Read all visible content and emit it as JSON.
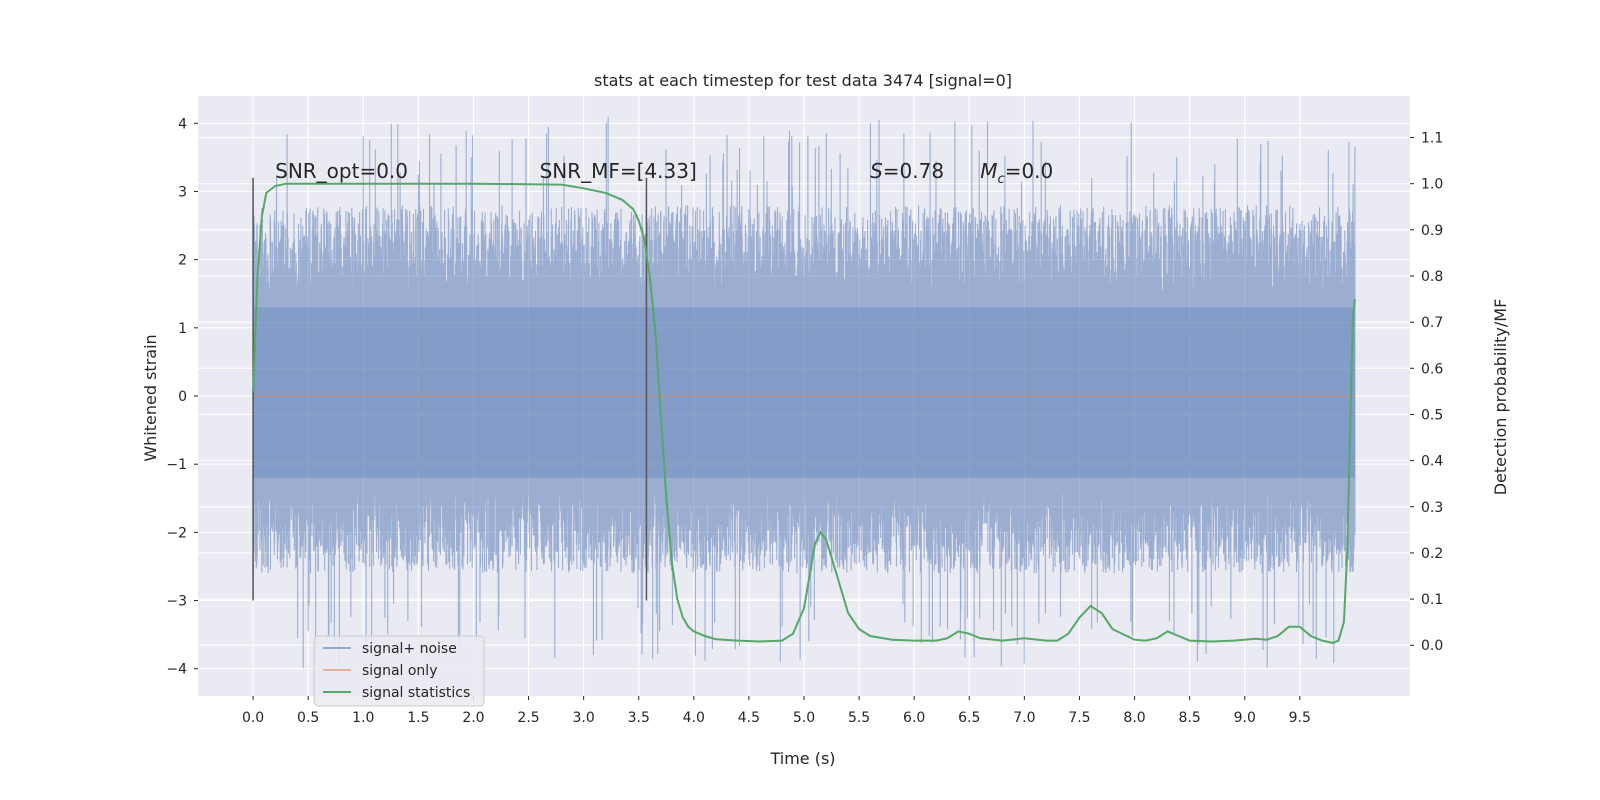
{
  "chart_data": {
    "type": "line",
    "title": "stats at each timestep for test data 3474 [signal=0]",
    "xlabel": "Time (s)",
    "ylabel": "Whitened strain",
    "y2label": "Detection probability/MF",
    "xlim": [
      -0.5,
      10.5
    ],
    "ylim": [
      -4.4,
      4.4
    ],
    "y2lim": [
      -0.11,
      1.19
    ],
    "xticks": [
      0.0,
      0.5,
      1.0,
      1.5,
      2.0,
      2.5,
      3.0,
      3.5,
      4.0,
      4.5,
      5.0,
      5.5,
      6.0,
      6.5,
      7.0,
      7.5,
      8.0,
      8.5,
      9.0,
      9.5
    ],
    "xtick_labels": [
      "0.0",
      "0.5",
      "1.0",
      "1.5",
      "2.0",
      "2.5",
      "3.0",
      "3.5",
      "4.0",
      "4.5",
      "5.0",
      "5.5",
      "6.0",
      "6.5",
      "7.0",
      "7.5",
      "8.0",
      "8.5",
      "9.0",
      "9.5"
    ],
    "yticks": [
      -4,
      -3,
      -2,
      -1,
      0,
      1,
      2,
      3,
      4
    ],
    "ytick_labels": [
      "−4",
      "−3",
      "−2",
      "−1",
      "0",
      "1",
      "2",
      "3",
      "4"
    ],
    "y2ticks": [
      0.0,
      0.1,
      0.2,
      0.3,
      0.4,
      0.5,
      0.6,
      0.7,
      0.8,
      0.9,
      1.0,
      1.1
    ],
    "y2tick_labels": [
      "0.0",
      "0.1",
      "0.2",
      "0.3",
      "0.4",
      "0.5",
      "0.6",
      "0.7",
      "0.8",
      "0.9",
      "1.0",
      "1.1"
    ],
    "grid": true,
    "legend_position": "lower-left",
    "colors": {
      "background": "#eaeaf2",
      "grid": "#ffffff",
      "noise": "#4c72b0",
      "signal": "#dd8452",
      "stats": "#55a868",
      "marker": "#555555"
    },
    "annotations": [
      {
        "text": "SNR_opt=0.0",
        "x": 0.2,
        "y": 3.2
      },
      {
        "text": "SNR_MF=[4.33]",
        "x": 2.6,
        "y": 3.2
      },
      {
        "text": "S=0.78",
        "x": 5.6,
        "y": 3.2
      },
      {
        "text": "M_c=0.0",
        "x": 6.6,
        "y": 3.2
      }
    ],
    "vertical_markers": [
      {
        "x": 0.0,
        "ymin": -3.0,
        "ymax": 3.2
      },
      {
        "x": 3.57,
        "ymin": -3.0,
        "ymax": 3.2
      }
    ],
    "series": [
      {
        "name": "signal+ noise",
        "axis": "left",
        "style": "noise",
        "x_range": [
          0.0,
          10.0
        ],
        "band_inner": [
          -1.2,
          1.3
        ],
        "band_outer": [
          -2.6,
          2.8
        ],
        "extremes": [
          -4.0,
          4.1
        ]
      },
      {
        "name": "signal only",
        "axis": "left",
        "x": [
          0.0,
          10.0
        ],
        "y": [
          0.0,
          0.0
        ]
      },
      {
        "name": "signal statistics",
        "axis": "right",
        "x": [
          0.0,
          0.04,
          0.08,
          0.12,
          0.2,
          0.3,
          0.5,
          1.0,
          2.0,
          2.8,
          3.0,
          3.2,
          3.35,
          3.45,
          3.5,
          3.55,
          3.6,
          3.65,
          3.7,
          3.75,
          3.8,
          3.85,
          3.9,
          3.95,
          4.0,
          4.1,
          4.2,
          4.4,
          4.6,
          4.8,
          4.9,
          5.0,
          5.05,
          5.1,
          5.15,
          5.2,
          5.3,
          5.4,
          5.5,
          5.6,
          5.8,
          6.0,
          6.2,
          6.3,
          6.4,
          6.5,
          6.6,
          6.8,
          7.0,
          7.2,
          7.3,
          7.4,
          7.5,
          7.6,
          7.7,
          7.8,
          8.0,
          8.1,
          8.2,
          8.3,
          8.4,
          8.5,
          8.7,
          8.9,
          9.1,
          9.2,
          9.3,
          9.4,
          9.5,
          9.6,
          9.7,
          9.8,
          9.85,
          9.9,
          9.93,
          9.96,
          9.98,
          10.0
        ],
        "y": [
          0.55,
          0.8,
          0.93,
          0.98,
          0.995,
          1.0,
          1.0,
          1.0,
          1.0,
          0.998,
          0.99,
          0.98,
          0.965,
          0.945,
          0.92,
          0.88,
          0.8,
          0.68,
          0.5,
          0.32,
          0.18,
          0.1,
          0.06,
          0.04,
          0.03,
          0.02,
          0.013,
          0.01,
          0.008,
          0.01,
          0.025,
          0.08,
          0.15,
          0.22,
          0.245,
          0.23,
          0.15,
          0.07,
          0.035,
          0.02,
          0.012,
          0.01,
          0.01,
          0.015,
          0.03,
          0.025,
          0.015,
          0.01,
          0.015,
          0.01,
          0.01,
          0.025,
          0.06,
          0.085,
          0.07,
          0.035,
          0.012,
          0.01,
          0.015,
          0.03,
          0.02,
          0.01,
          0.008,
          0.01,
          0.014,
          0.012,
          0.02,
          0.04,
          0.04,
          0.02,
          0.01,
          0.005,
          0.01,
          0.05,
          0.2,
          0.5,
          0.7,
          0.75
        ]
      }
    ],
    "legend": [
      {
        "label": "signal+ noise",
        "color": "#4c72b0",
        "opacity": 0.55
      },
      {
        "label": "signal only",
        "color": "#dd8452",
        "opacity": 0.55
      },
      {
        "label": "signal statistics",
        "color": "#55a868",
        "opacity": 1.0
      }
    ]
  }
}
